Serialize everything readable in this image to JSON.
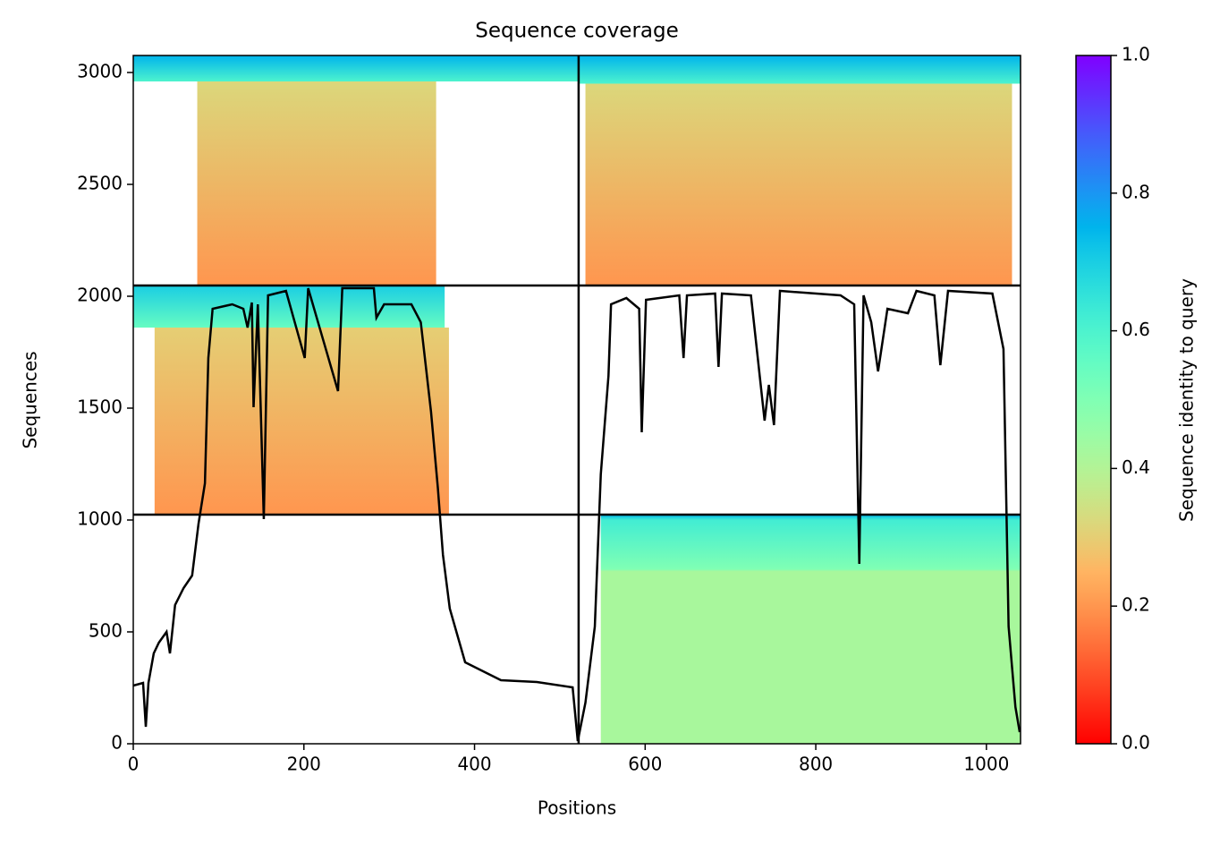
{
  "chart_data": {
    "type": "coverage",
    "title": "Sequence coverage",
    "x_label": "Positions",
    "y_label": "Sequences",
    "xlim": [
      0,
      1040
    ],
    "ylim": [
      0,
      3076
    ],
    "xticks": [
      0,
      200,
      400,
      600,
      800,
      1000
    ],
    "yticks": [
      0,
      500,
      1000,
      1500,
      2000,
      2500,
      3000
    ],
    "colorbar": {
      "label": "Sequence identity to query",
      "lim": [
        0,
        1
      ],
      "ticks": [
        {
          "value": 0,
          "label": "0.0"
        },
        {
          "value": 0.2,
          "label": "0.2"
        },
        {
          "value": 0.4,
          "label": "0.4"
        },
        {
          "value": 0.6,
          "label": "0.6"
        },
        {
          "value": 0.8,
          "label": "0.8"
        },
        {
          "value": 1,
          "label": "1.0"
        }
      ]
    },
    "blocks": [
      {
        "x": [
          548,
          1040
        ],
        "y": [
          0,
          1024
        ],
        "stops": [
          [
            1024,
            0.75
          ],
          [
            1000,
            0.62
          ],
          [
            780,
            0.5
          ],
          [
            770,
            0.42
          ],
          [
            0,
            0.42
          ]
        ]
      },
      {
        "x": [
          0,
          365
        ],
        "y": [
          1860,
          2048
        ],
        "stops": [
          [
            2048,
            0.7
          ],
          [
            1860,
            0.55
          ]
        ]
      },
      {
        "x": [
          25,
          370
        ],
        "y": [
          1024,
          1860
        ],
        "stops": [
          [
            1860,
            0.3
          ],
          [
            1024,
            0.2
          ]
        ]
      },
      {
        "x": [
          0,
          522
        ],
        "y": [
          2960,
          3076
        ],
        "stops": [
          [
            3076,
            0.75
          ],
          [
            2960,
            0.6
          ]
        ]
      },
      {
        "x": [
          75,
          355
        ],
        "y": [
          2048,
          2960
        ],
        "stops": [
          [
            2960,
            0.32
          ],
          [
            2048,
            0.2
          ]
        ]
      },
      {
        "x": [
          522,
          1040
        ],
        "y": [
          2950,
          3076
        ],
        "stops": [
          [
            3076,
            0.75
          ],
          [
            2950,
            0.6
          ]
        ]
      },
      {
        "x": [
          530,
          1030
        ],
        "y": [
          2048,
          2950
        ],
        "stops": [
          [
            2950,
            0.32
          ],
          [
            2048,
            0.2
          ]
        ]
      }
    ],
    "dividers": {
      "x": [
        522
      ],
      "y": [
        1024,
        2048
      ]
    },
    "coverage": {
      "color": "#000000",
      "x": [
        0,
        11.5,
        14.7,
        17.8,
        24,
        30,
        39,
        43,
        49,
        59,
        69,
        76.5,
        84,
        88,
        93,
        116,
        129,
        134,
        139,
        141,
        146,
        153,
        158,
        179,
        201,
        205,
        240,
        245,
        282,
        285,
        294,
        326,
        337,
        349,
        357,
        363,
        371,
        389,
        431,
        473,
        515,
        521,
        530,
        541,
        548,
        557,
        560,
        578,
        593,
        596,
        601,
        640,
        645,
        649,
        682,
        686,
        690,
        724,
        740,
        745,
        751,
        758,
        829,
        845,
        851,
        856,
        865,
        873,
        884,
        908,
        918,
        939,
        946,
        955,
        1007,
        1020,
        1026,
        1034,
        1039
      ],
      "y": [
        260,
        272,
        76,
        272,
        404,
        452,
        500,
        404,
        620,
        696,
        752,
        984,
        1164,
        1724,
        1944,
        1964,
        1944,
        1860,
        1972,
        1504,
        1964,
        1004,
        2004,
        2024,
        1724,
        2036,
        1576,
        2036,
        2036,
        1904,
        1964,
        1964,
        1884,
        1484,
        1144,
        844,
        604,
        364,
        284,
        276,
        252,
        12,
        184,
        524,
        1204,
        1644,
        1964,
        1992,
        1944,
        1392,
        1984,
        2004,
        1724,
        2004,
        2012,
        1684,
        2012,
        2004,
        1444,
        1604,
        1424,
        2024,
        2004,
        1964,
        804,
        2004,
        1884,
        1664,
        1944,
        1924,
        2024,
        2004,
        1692,
        2024,
        2012,
        1764,
        524,
        164,
        52
      ]
    }
  }
}
